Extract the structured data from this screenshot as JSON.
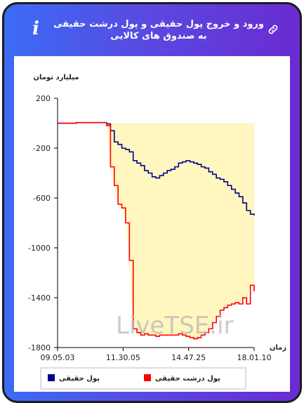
{
  "header": {
    "title": "ورود و خروج پول حقیقی و پول درشت حقیقی به صندوق های کالایی",
    "info_icon": "info-icon",
    "link_icon": "link-icon",
    "gradient_start": "#3b6cf5",
    "gradient_end": "#6a2bd0"
  },
  "chart_data": {
    "type": "line",
    "ylabel": "میلیارد تومان",
    "xlabel": "زمان",
    "ylim": [
      -1800,
      200
    ],
    "y_ticks": [
      "200",
      "-200",
      "-600",
      "-1000",
      "-1400",
      "-1800"
    ],
    "x_ticks": [
      "09.05.03",
      "11.30.05",
      "14.47.25",
      "18.01.10"
    ],
    "watermark": "LiveTSE.ir",
    "grid": false,
    "legend_position": "bottom",
    "series": [
      {
        "name": "پول حقیقی",
        "color": "#00008b",
        "fill": "#eeeec0",
        "values": [
          0,
          0,
          0,
          0,
          0,
          5,
          5,
          5,
          5,
          5,
          5,
          5,
          5,
          -5,
          -60,
          -150,
          -170,
          -200,
          -210,
          -230,
          -300,
          -320,
          -340,
          -380,
          -400,
          -430,
          -440,
          -420,
          -400,
          -380,
          -370,
          -350,
          -320,
          -310,
          -300,
          -310,
          -320,
          -330,
          -350,
          -360,
          -390,
          -410,
          -440,
          -450,
          -470,
          -500,
          -530,
          -560,
          -590,
          -640,
          -700,
          -730,
          -740
        ]
      },
      {
        "name": "پول درشت حقیقی",
        "color": "#ff0000",
        "fill": "#fff6c0",
        "values": [
          0,
          0,
          0,
          0,
          0,
          5,
          5,
          5,
          5,
          5,
          5,
          5,
          5,
          -20,
          -350,
          -500,
          -650,
          -680,
          -800,
          -1100,
          -1650,
          -1680,
          -1700,
          -1690,
          -1700,
          -1700,
          -1710,
          -1700,
          -1700,
          -1700,
          -1700,
          -1700,
          -1690,
          -1700,
          -1710,
          -1720,
          -1730,
          -1720,
          -1700,
          -1680,
          -1650,
          -1600,
          -1550,
          -1500,
          -1480,
          -1460,
          -1450,
          -1440,
          -1450,
          -1400,
          -1450,
          -1300,
          -1350
        ]
      }
    ]
  }
}
